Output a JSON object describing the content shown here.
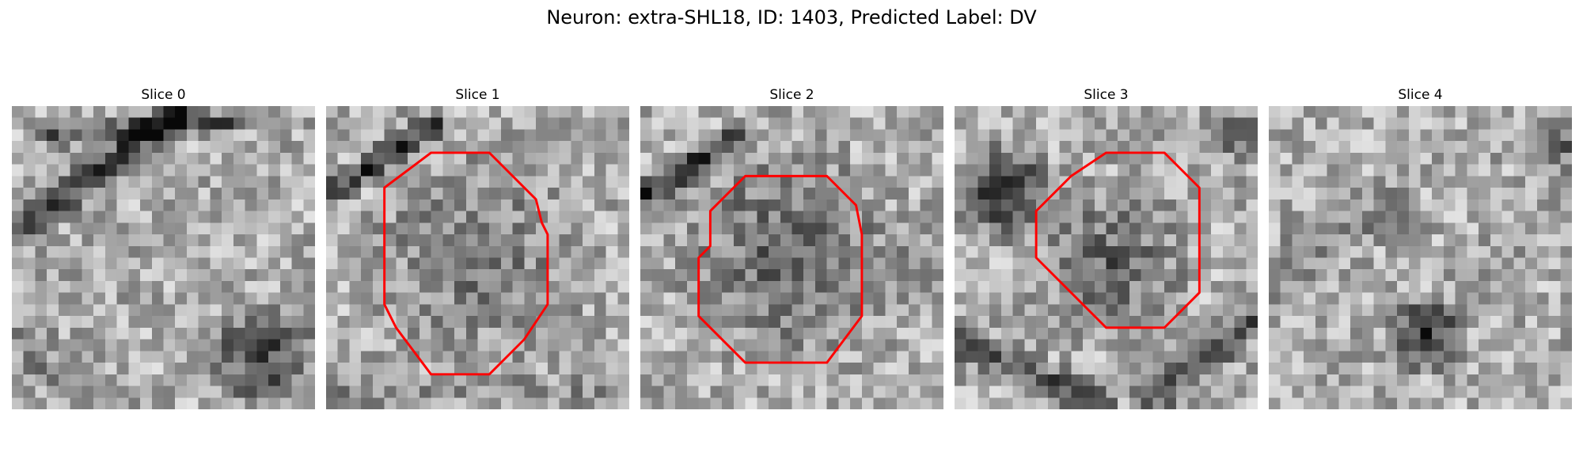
{
  "figure": {
    "title": "Neuron: extra-SHL18, ID: 1403, Predicted Label: DV"
  },
  "slices": [
    {
      "title": "Slice 0",
      "has_contour": false
    },
    {
      "title": "Slice 1",
      "has_contour": true
    },
    {
      "title": "Slice 2",
      "has_contour": true
    },
    {
      "title": "Slice 3",
      "has_contour": true
    },
    {
      "title": "Slice 4",
      "has_contour": false
    }
  ],
  "colors": {
    "contour": "#ff0000",
    "background": "#ffffff"
  }
}
